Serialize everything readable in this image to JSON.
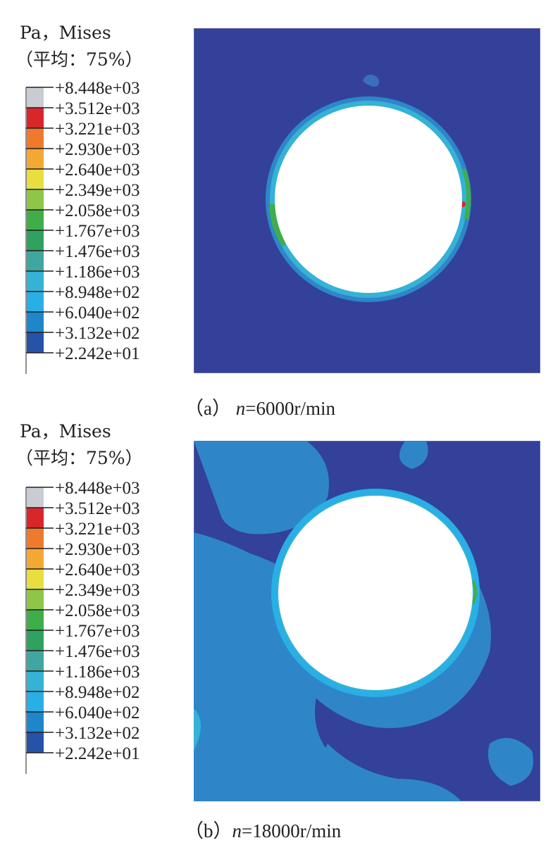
{
  "colors": {
    "background_field": "#33419b",
    "hole": "#ffffff",
    "frame": "#8a8f9a"
  },
  "legend": {
    "title": "Pa，Mises",
    "subtitle": "（平均：75%）",
    "levels": [
      "+8.448e+03",
      "+3.512e+03",
      "+3.221e+03",
      "+2.930e+03",
      "+2.640e+03",
      "+2.349e+03",
      "+2.058e+03",
      "+1.767e+03",
      "+1.476e+03",
      "+1.186e+03",
      "+8.948e+02",
      "+6.040e+02",
      "+3.132e+02",
      "+2.242e+01"
    ],
    "band_colors": [
      "#c9cdd3",
      "#d9262a",
      "#f07a2c",
      "#f3a834",
      "#e8de3f",
      "#8fc64a",
      "#3fae4a",
      "#2fa25f",
      "#3fa7a0",
      "#35b2d4",
      "#29aee6",
      "#1e86c9",
      "#2653a8"
    ]
  },
  "panels": [
    {
      "caption_prefix": "（a） ",
      "caption_var": "n",
      "caption_rest": "=6000r/min"
    },
    {
      "caption_prefix": "（b）",
      "caption_var": "n",
      "caption_rest": "=18000r/min"
    }
  ]
}
